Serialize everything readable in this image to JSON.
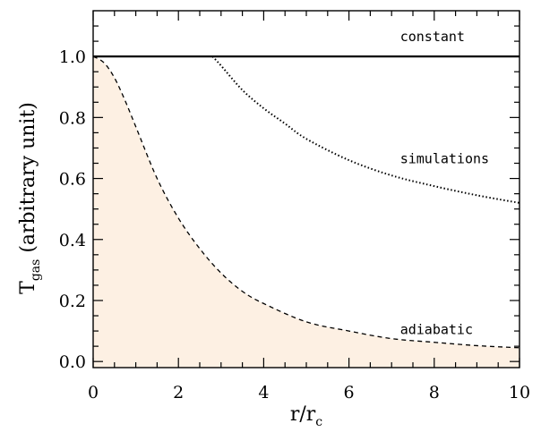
{
  "chart_data": {
    "type": "line",
    "title": "",
    "xlabel": "r/r",
    "xlabel_sub": "c",
    "ylabel_prefix": "T",
    "ylabel_sub": "gas",
    "ylabel_suffix": " (arbitrary unit)",
    "xlim": [
      0,
      10
    ],
    "ylim": [
      -0.02,
      1.15
    ],
    "x_ticks": [
      0,
      2,
      4,
      6,
      8,
      10
    ],
    "x_tick_labels": [
      "0",
      "2",
      "4",
      "6",
      "8",
      "10"
    ],
    "y_ticks": [
      0.0,
      0.2,
      0.4,
      0.6,
      0.8,
      1.0
    ],
    "y_tick_labels": [
      "0.0",
      "0.2",
      "0.4",
      "0.6",
      "0.8",
      "1.0"
    ],
    "grid": false,
    "series": [
      {
        "name": "constant",
        "style": "solid",
        "x": [
          0,
          10
        ],
        "y": [
          1.0,
          1.0
        ]
      },
      {
        "name": "simulations",
        "style": "dotted",
        "x": [
          2.8,
          3,
          3.5,
          4,
          4.5,
          5,
          6,
          7,
          8,
          9,
          10
        ],
        "y": [
          1.0,
          0.97,
          0.89,
          0.83,
          0.78,
          0.73,
          0.66,
          0.61,
          0.575,
          0.545,
          0.52
        ]
      },
      {
        "name": "adiabatic",
        "style": "dashed",
        "filled": true,
        "x": [
          0,
          0.25,
          0.5,
          0.75,
          1,
          1.5,
          2,
          2.5,
          3,
          3.5,
          4,
          5,
          6,
          7,
          8,
          9,
          10
        ],
        "y": [
          1.0,
          0.98,
          0.93,
          0.855,
          0.77,
          0.6,
          0.47,
          0.37,
          0.29,
          0.23,
          0.19,
          0.13,
          0.1,
          0.075,
          0.063,
          0.052,
          0.045
        ]
      }
    ],
    "annotations": [
      {
        "text": "constant",
        "x": 7.2,
        "y": 1.05
      },
      {
        "text": "simulations",
        "x": 7.2,
        "y": 0.65
      },
      {
        "text": "adiabatic",
        "x": 7.2,
        "y": 0.09
      }
    ],
    "colors": {
      "fill": "#fdf0e3",
      "line": "#000000"
    }
  }
}
